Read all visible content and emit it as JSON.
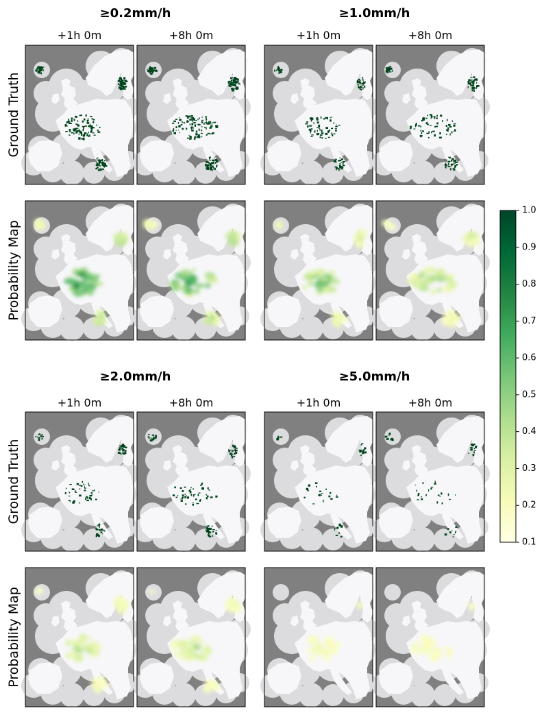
{
  "chart_data": {
    "type": "heatmap",
    "groups": [
      {
        "title": "≥0.2mm/h",
        "intensity": [
          1.0,
          0.9
        ]
      },
      {
        "title": "≥1.0mm/h",
        "intensity": [
          0.65,
          0.55
        ]
      },
      {
        "title": "≥2.0mm/h",
        "intensity": [
          0.45,
          0.4
        ]
      },
      {
        "title": "≥5.0mm/h",
        "intensity": [
          0.2,
          0.2
        ]
      }
    ],
    "lead_times": [
      "+1h 0m",
      "+8h 0m"
    ],
    "row_labels": [
      "Ground Truth",
      "Probability Map"
    ],
    "colorbar": {
      "min": 0.1,
      "max": 1.0,
      "ticks": [
        "0.1",
        "0.2",
        "0.3",
        "0.4",
        "0.5",
        "0.6",
        "0.7",
        "0.8",
        "0.9",
        "1.0"
      ],
      "colormap": "YlGn",
      "stops": [
        "#ffffe5",
        "#f7fcb9",
        "#d9f0a3",
        "#addd8e",
        "#78c679",
        "#41ab5d",
        "#238443",
        "#006837",
        "#004529"
      ]
    },
    "colors": {
      "background": "#808080",
      "land": "#f7f7f9",
      "buffer": "#dcdcde",
      "ground_truth": "#00441b"
    }
  }
}
